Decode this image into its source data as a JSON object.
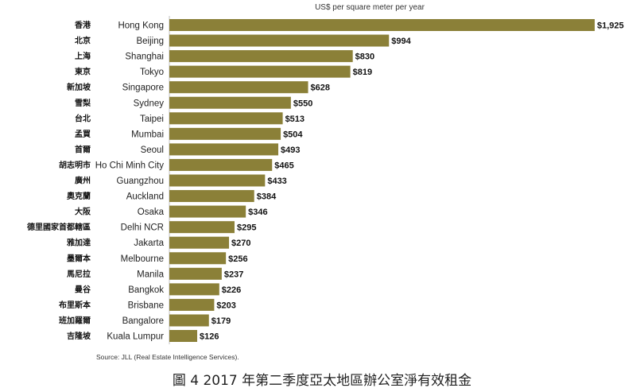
{
  "chart_data": {
    "type": "bar",
    "orientation": "horizontal",
    "unit_label": "US$ per square meter per year",
    "categories_zh": [
      "香港",
      "北京",
      "上海",
      "東京",
      "新加坡",
      "雪梨",
      "台北",
      "孟買",
      "首爾",
      "胡志明市",
      "廣州",
      "奧克蘭",
      "大阪",
      "德里國家首都轄區",
      "雅加達",
      "墨爾本",
      "馬尼拉",
      "曼谷",
      "布里斯本",
      "班加羅爾",
      "吉隆坡"
    ],
    "categories": [
      "Hong Kong",
      "Beijing",
      "Shanghai",
      "Tokyo",
      "Singapore",
      "Sydney",
      "Taipei",
      "Mumbai",
      "Seoul",
      "Ho Chi Minh City",
      "Guangzhou",
      "Auckland",
      "Osaka",
      "Delhi NCR",
      "Jakarta",
      "Melbourne",
      "Manila",
      "Bangkok",
      "Brisbane",
      "Bangalore",
      "Kuala Lumpur"
    ],
    "values": [
      1925,
      994,
      830,
      819,
      628,
      550,
      513,
      504,
      493,
      465,
      433,
      384,
      346,
      295,
      270,
      256,
      237,
      226,
      203,
      179,
      126
    ],
    "value_labels": [
      "$1,925",
      "$994",
      "$830",
      "$819",
      "$628",
      "$550",
      "$513",
      "$504",
      "$493",
      "$465",
      "$433",
      "$384",
      "$346",
      "$295",
      "$270",
      "$256",
      "$237",
      "$226",
      "$203",
      "$179",
      "$126"
    ],
    "xlim": [
      0,
      1925
    ],
    "bar_color": "#8b8038",
    "source": "Source: JLL (Real Estate Intelligence Services).",
    "caption": "圖 4 2017 年第二季度亞太地區辦公室淨有效租金"
  }
}
